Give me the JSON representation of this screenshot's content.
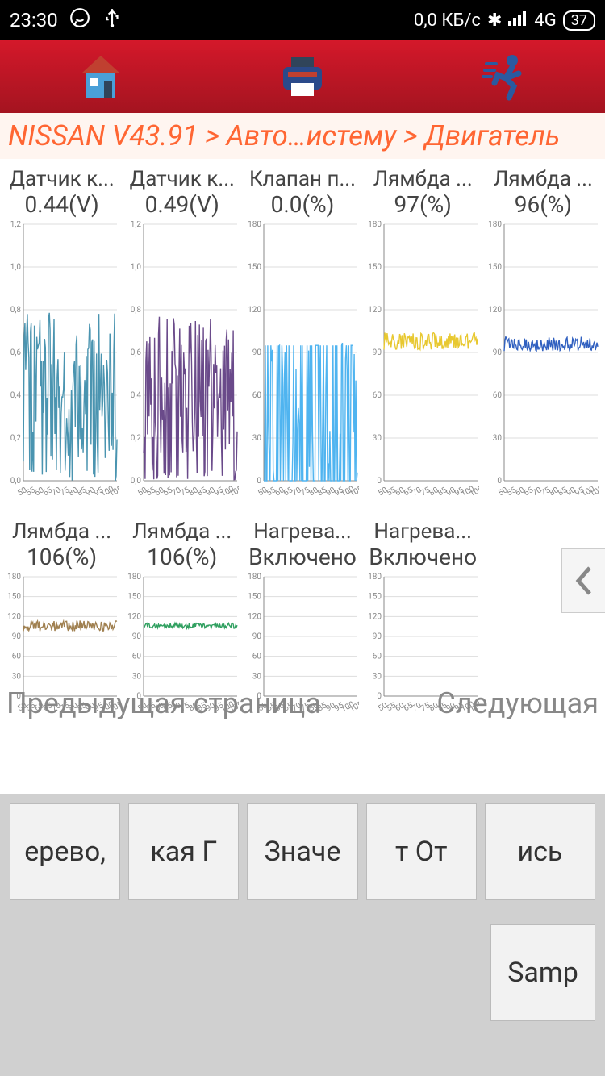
{
  "status_bar": {
    "time": "23:30",
    "data_rate": "0,0 КБ/с",
    "network": "4G",
    "battery": "37"
  },
  "breadcrumb": "NISSAN V43.91 > Авто…истему > Двигатель",
  "charts": [
    {
      "title": "Датчик к...",
      "value": "0.44(V)",
      "color": "#4a94b0",
      "ymax": 1.2,
      "ytick": 0.2,
      "noise_center": 0.44,
      "noise_amp": 0.35,
      "style": "dense"
    },
    {
      "title": "Датчик к...",
      "value": "0.49(V)",
      "color": "#6a4a8a",
      "ymax": 1.2,
      "ytick": 0.2,
      "noise_center": 0.45,
      "noise_amp": 0.32,
      "style": "dense"
    },
    {
      "title": "Клапан п...",
      "value": "0.0(%)",
      "color": "#4fb4f0",
      "ymax": 180,
      "ytick": 30,
      "noise_center": 50,
      "noise_amp": 50,
      "style": "spikes"
    },
    {
      "title": "Лямбда ...",
      "value": "97(%)",
      "color": "#e8c830",
      "ymax": 180,
      "ytick": 30,
      "noise_center": 98,
      "noise_amp": 6,
      "style": "flat"
    },
    {
      "title": "Лямбда ...",
      "value": "96(%)",
      "color": "#3060c0",
      "ymax": 180,
      "ytick": 30,
      "noise_center": 96,
      "noise_amp": 5,
      "style": "flat"
    },
    {
      "title": "Лямбда ...",
      "value": "106(%)",
      "color": "#a08050",
      "ymax": 180,
      "ytick": 30,
      "noise_center": 106,
      "noise_amp": 8,
      "style": "flat"
    },
    {
      "title": "Лямбда ...",
      "value": "106(%)",
      "color": "#30a060",
      "ymax": 180,
      "ytick": 30,
      "noise_center": 106,
      "noise_amp": 4,
      "style": "flat"
    },
    {
      "title": "Нагрева...",
      "value": "Включено",
      "color": "#888",
      "ymax": 180,
      "ytick": 30,
      "noise_center": 0,
      "noise_amp": 0,
      "style": "none"
    },
    {
      "title": "Нагрева...",
      "value": "Включено",
      "color": "#888",
      "ymax": 180,
      "ytick": 30,
      "noise_center": 0,
      "noise_amp": 0,
      "style": "none"
    }
  ],
  "nav": {
    "prev": "Предыдущая страница",
    "next": "Следующая"
  },
  "buttons_row1": [
    "ерево,",
    "кая   Г",
    "Значе",
    "т   От",
    "ись"
  ],
  "button_row2": "Samp",
  "chart_grid_color": "#dddddd",
  "chart_axis_color": "#888888",
  "icons": {
    "home_colors": {
      "wall": "#4aa0d8",
      "roof": "#c04030",
      "door": "#30445a"
    },
    "print_colors": {
      "body": "#2a4a8a",
      "top": "#30445a",
      "slot": "#c04030"
    },
    "run_color": "#2a5aa0"
  }
}
